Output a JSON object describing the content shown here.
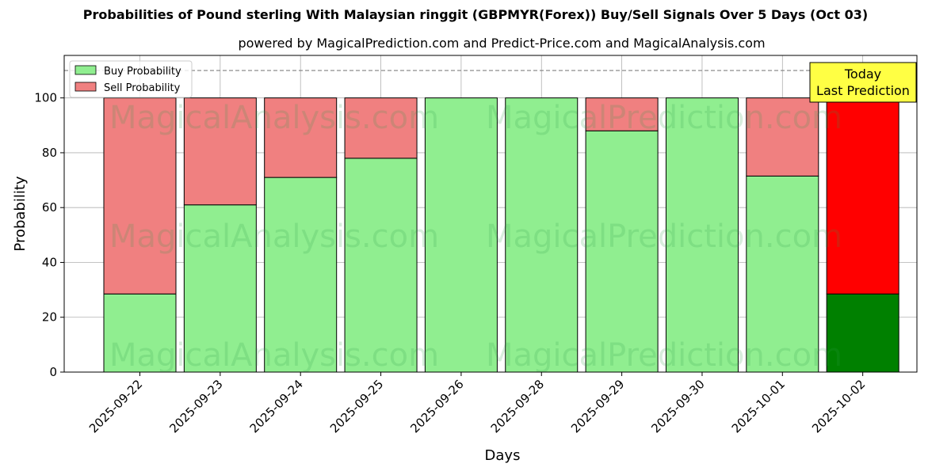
{
  "chart_data": {
    "type": "bar",
    "stacked": true,
    "title": "Probabilities of Pound sterling With Malaysian ringgit (GBPMYR(Forex)) Buy/Sell Signals Over 5 Days (Oct 03)",
    "subtitle": "powered by MagicalPrediction.com and Predict-Price.com and MagicalAnalysis.com",
    "xlabel": "Days",
    "ylabel": "Probability",
    "ylim": [
      0,
      115.5
    ],
    "yticks": [
      "0",
      "20",
      "40",
      "60",
      "80",
      "100"
    ],
    "categories": [
      "2025-09-22",
      "2025-09-23",
      "2025-09-24",
      "2025-09-25",
      "2025-09-26",
      "2025-09-28",
      "2025-09-29",
      "2025-09-30",
      "2025-10-01",
      "2025-10-02"
    ],
    "series": [
      {
        "name": "Buy Probability",
        "values": [
          28.5,
          61,
          71,
          78,
          100,
          100,
          88,
          100,
          71.5,
          28.5
        ]
      },
      {
        "name": "Sell Probability",
        "values": [
          71.5,
          39,
          29,
          22,
          0,
          0,
          12,
          0,
          28.5,
          71.5
        ]
      }
    ],
    "reference_line": 110,
    "grid": true,
    "legend_position": "top-left",
    "annotation": {
      "line1": "Today",
      "line2": "Last Prediction"
    },
    "watermarks": [
      "MagicalAnalysis.com",
      "MagicalPrediction.com"
    ],
    "colors": {
      "buy": "#90ee90",
      "sell": "#f08080",
      "buy_highlight": "#008000",
      "sell_highlight": "#ff0000",
      "annotation_bg": "#ffff44",
      "grid": "#b0b0b0"
    }
  }
}
